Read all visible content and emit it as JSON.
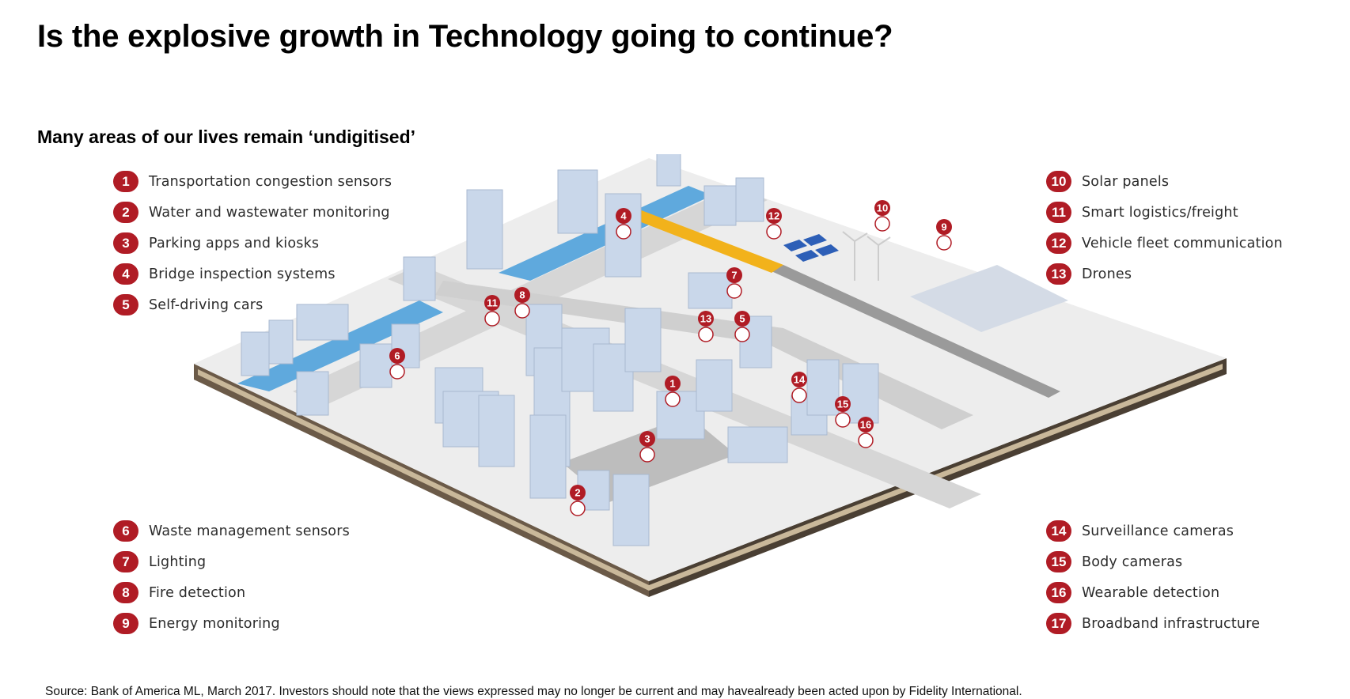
{
  "slide": {
    "title": "Is the explosive growth in Technology going to continue?",
    "subtitle": "Many areas of our lives remain ‘undigitised’",
    "source": "Source: Bank of America ML, March 2017. Investors should note that the views expressed may no longer be current and may havealready been acted upon by Fidelity International."
  },
  "colors": {
    "badge": "#b01c25",
    "water": "#5fa9dd",
    "building": "#c9d7ea",
    "road": "#d9d9d9",
    "platform": "#5a4b3c"
  },
  "legend": {
    "top_left": [
      {
        "num": "1",
        "label": "Transportation congestion sensors"
      },
      {
        "num": "2",
        "label": "Water and wastewater monitoring"
      },
      {
        "num": "3",
        "label": "Parking apps and kiosks"
      },
      {
        "num": "4",
        "label": "Bridge inspection systems"
      },
      {
        "num": "5",
        "label": "Self-driving cars"
      }
    ],
    "bottom_left": [
      {
        "num": "6",
        "label": "Waste management sensors"
      },
      {
        "num": "7",
        "label": "Lighting"
      },
      {
        "num": "8",
        "label": "Fire detection"
      },
      {
        "num": "9",
        "label": "Energy monitoring"
      }
    ],
    "top_right": [
      {
        "num": "10",
        "label": "Solar panels"
      },
      {
        "num": "11",
        "label": "Smart logistics/freight"
      },
      {
        "num": "12",
        "label": "Vehicle fleet communication"
      },
      {
        "num": "13",
        "label": "Drones"
      }
    ],
    "bottom_right": [
      {
        "num": "14",
        "label": "Surveillance cameras"
      },
      {
        "num": "15",
        "label": "Body cameras"
      },
      {
        "num": "16",
        "label": "Wearable detection"
      },
      {
        "num": "17",
        "label": "Broadband infrastructure"
      }
    ]
  },
  "map_pins": [
    "1",
    "2",
    "3",
    "4",
    "5",
    "6",
    "7",
    "8",
    "9",
    "10",
    "11",
    "12",
    "13",
    "14",
    "15",
    "16"
  ]
}
